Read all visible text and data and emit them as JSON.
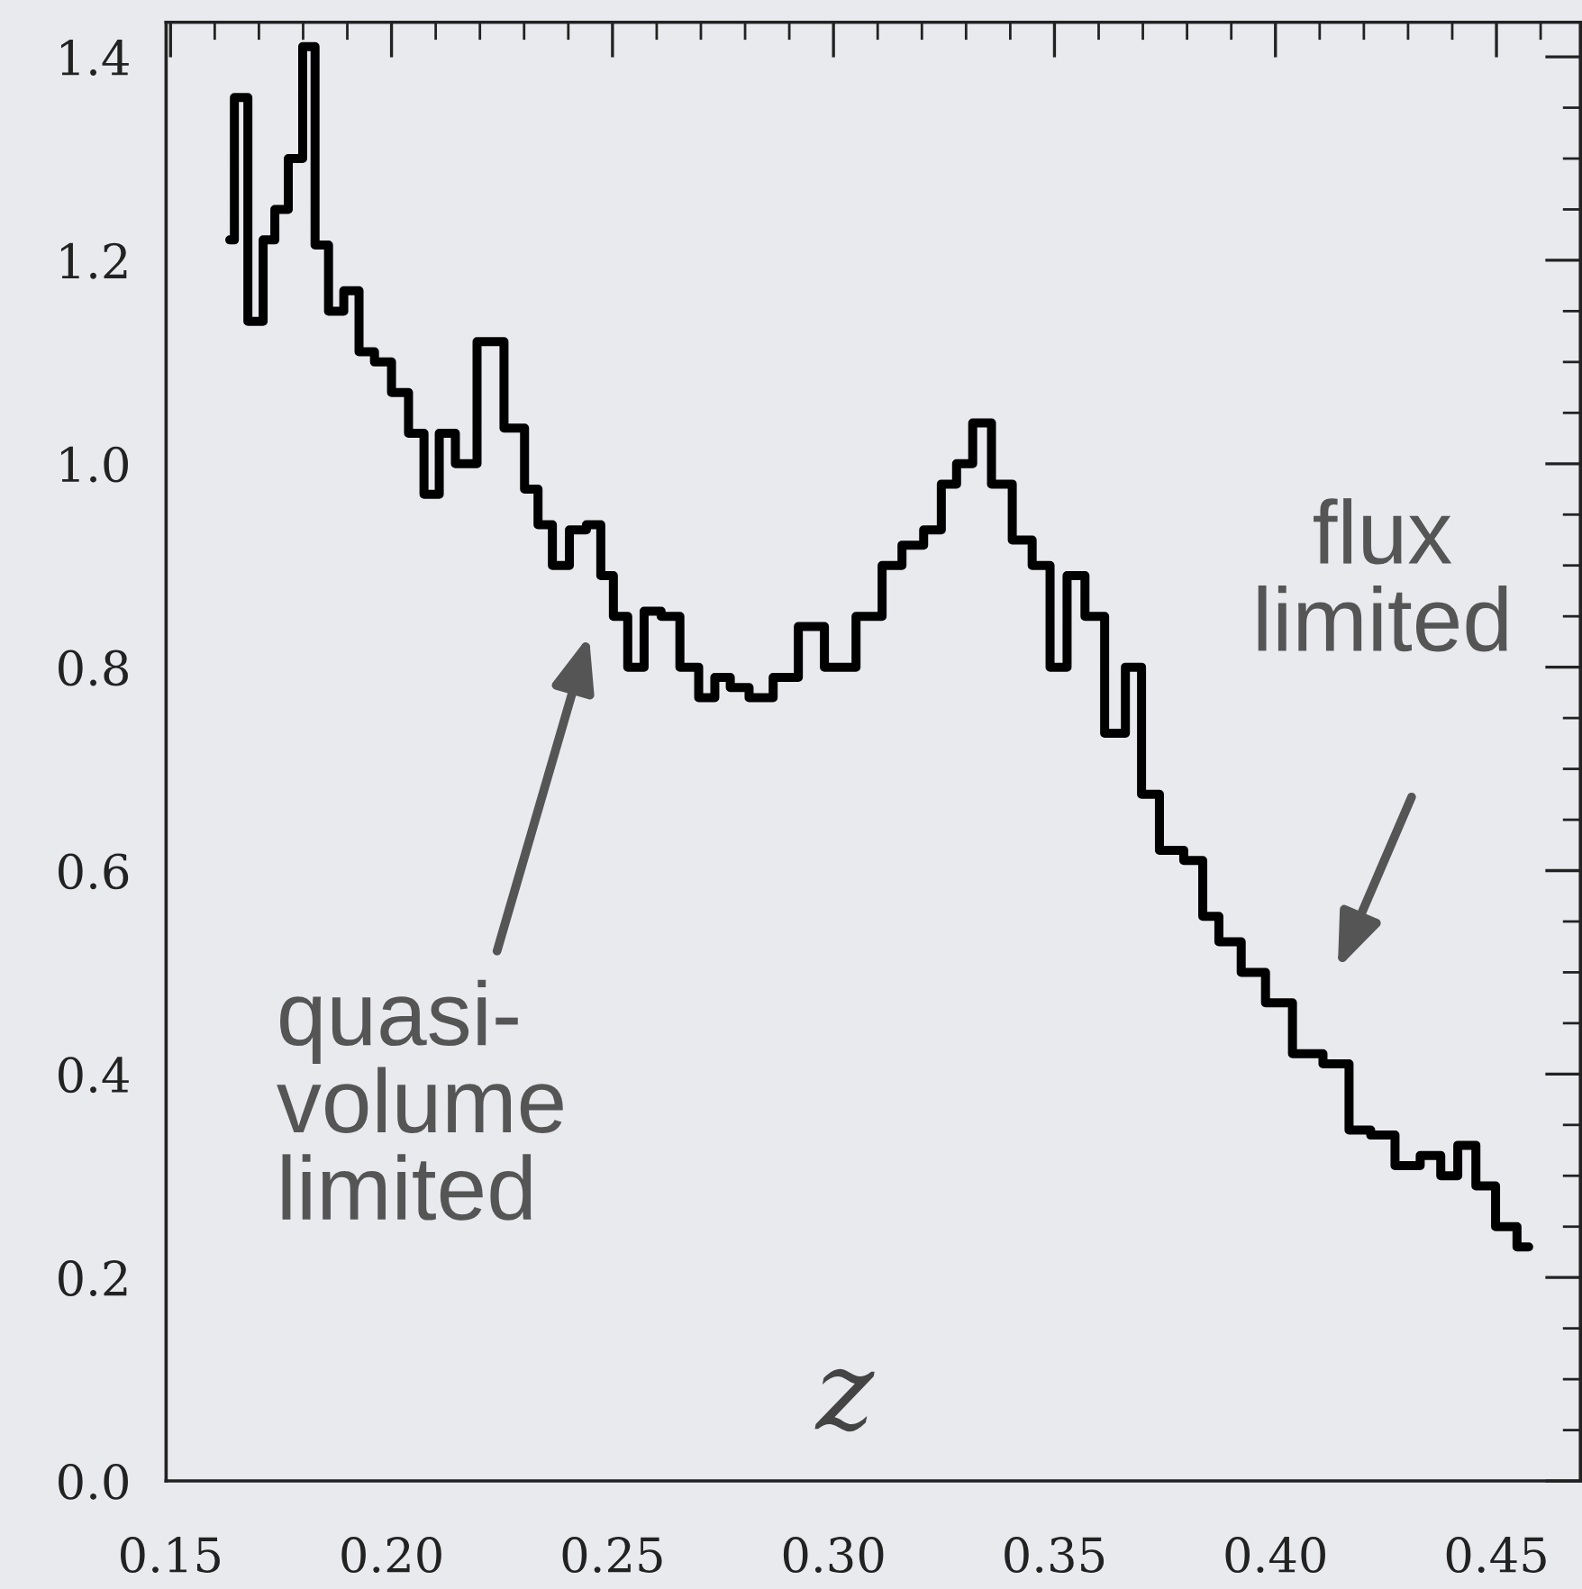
{
  "chart_data": {
    "type": "step",
    "xlabel": "z",
    "x": [
      0.1634,
      0.1655,
      0.1695,
      0.1724,
      0.1748,
      0.1785,
      0.1813,
      0.1841,
      0.1874,
      0.191,
      0.1943,
      0.198,
      0.202,
      0.2057,
      0.209,
      0.2126,
      0.2163,
      0.2224,
      0.2285,
      0.2317,
      0.2346,
      0.2382,
      0.2423,
      0.2459,
      0.2488,
      0.2516,
      0.2553,
      0.259,
      0.263,
      0.2675,
      0.2715,
      0.2748,
      0.2785,
      0.2833,
      0.2894,
      0.2947,
      0.3012,
      0.309,
      0.313,
      0.318,
      0.3228,
      0.326,
      0.3297,
      0.3333,
      0.3382,
      0.3427,
      0.3472,
      0.3508,
      0.3549,
      0.3589,
      0.3638,
      0.3683,
      0.3711,
      0.3764,
      0.3821,
      0.385,
      0.3894,
      0.3951,
      0.4004,
      0.4073,
      0.4142,
      0.4191,
      0.424,
      0.4301,
      0.4354,
      0.4394,
      0.4431,
      0.4476,
      0.452,
      0.4573
    ],
    "series": [
      {
        "color": "#000000",
        "values": [
          1.22,
          1.36,
          1.14,
          1.22,
          1.25,
          1.3,
          1.41,
          1.215,
          1.15,
          1.17,
          1.11,
          1.1,
          1.07,
          1.03,
          0.97,
          1.03,
          1.0,
          1.12,
          1.035,
          0.975,
          0.94,
          0.9,
          0.935,
          0.94,
          0.89,
          0.85,
          0.8,
          0.855,
          0.85,
          0.8,
          0.77,
          0.79,
          0.78,
          0.77,
          0.79,
          0.84,
          0.8,
          0.85,
          0.9,
          0.92,
          0.935,
          0.98,
          1.0,
          1.04,
          0.98,
          0.925,
          0.9,
          0.8,
          0.89,
          0.85,
          0.735,
          0.8,
          0.675,
          0.62,
          0.61,
          0.555,
          0.53,
          0.5,
          0.47,
          0.42,
          0.41,
          0.345,
          0.34,
          0.31,
          0.32,
          0.3,
          0.33,
          0.29,
          0.25,
          0.23
        ]
      }
    ],
    "xlim": [
      0.149,
      0.469
    ],
    "ylim": [
      0,
      1.434
    ],
    "xticks": [
      {
        "value": 0.15,
        "label": "0.15"
      },
      {
        "value": 0.16,
        "label": null
      },
      {
        "value": 0.17,
        "label": null
      },
      {
        "value": 0.18,
        "label": null
      },
      {
        "value": 0.19,
        "label": null
      },
      {
        "value": 0.2,
        "label": "0.20"
      },
      {
        "value": 0.21,
        "label": null
      },
      {
        "value": 0.22,
        "label": null
      },
      {
        "value": 0.23,
        "label": null
      },
      {
        "value": 0.24,
        "label": null
      },
      {
        "value": 0.25,
        "label": "0.25"
      },
      {
        "value": 0.26,
        "label": null
      },
      {
        "value": 0.27,
        "label": null
      },
      {
        "value": 0.28,
        "label": null
      },
      {
        "value": 0.29,
        "label": null
      },
      {
        "value": 0.3,
        "label": "0.30"
      },
      {
        "value": 0.31,
        "label": null
      },
      {
        "value": 0.32,
        "label": null
      },
      {
        "value": 0.33,
        "label": null
      },
      {
        "value": 0.34,
        "label": null
      },
      {
        "value": 0.35,
        "label": "0.35"
      },
      {
        "value": 0.36,
        "label": null
      },
      {
        "value": 0.37,
        "label": null
      },
      {
        "value": 0.38,
        "label": null
      },
      {
        "value": 0.39,
        "label": null
      },
      {
        "value": 0.4,
        "label": "0.40"
      },
      {
        "value": 0.41,
        "label": null
      },
      {
        "value": 0.42,
        "label": null
      },
      {
        "value": 0.43,
        "label": null
      },
      {
        "value": 0.44,
        "label": null
      },
      {
        "value": 0.45,
        "label": "0.45"
      },
      {
        "value": 0.46,
        "label": null
      }
    ],
    "yticks": [
      {
        "value": 0,
        "label": "0.0"
      },
      {
        "value": 0.05,
        "label": null
      },
      {
        "value": 0.1,
        "label": null
      },
      {
        "value": 0.15,
        "label": null
      },
      {
        "value": 0.2,
        "label": "0.2"
      },
      {
        "value": 0.25,
        "label": null
      },
      {
        "value": 0.3,
        "label": null
      },
      {
        "value": 0.35,
        "label": null
      },
      {
        "value": 0.4,
        "label": "0.4"
      },
      {
        "value": 0.45,
        "label": null
      },
      {
        "value": 0.5,
        "label": null
      },
      {
        "value": 0.55,
        "label": null
      },
      {
        "value": 0.6,
        "label": "0.6"
      },
      {
        "value": 0.65,
        "label": null
      },
      {
        "value": 0.7,
        "label": null
      },
      {
        "value": 0.75,
        "label": null
      },
      {
        "value": 0.8,
        "label": "0.8"
      },
      {
        "value": 0.85,
        "label": null
      },
      {
        "value": 0.9,
        "label": null
      },
      {
        "value": 0.95,
        "label": null
      },
      {
        "value": 1,
        "label": "1.0"
      },
      {
        "value": 1.05,
        "label": null
      },
      {
        "value": 1.1,
        "label": null
      },
      {
        "value": 1.15,
        "label": null
      },
      {
        "value": 1.2,
        "label": "1.2"
      },
      {
        "value": 1.25,
        "label": null
      },
      {
        "value": 1.3,
        "label": null
      },
      {
        "value": 1.35,
        "label": null
      },
      {
        "value": 1.4,
        "label": "1.4"
      }
    ],
    "annotations": [
      "quasi-\nvolume\nlimited",
      "flux\nlimited"
    ],
    "grid": false,
    "legend": false
  }
}
